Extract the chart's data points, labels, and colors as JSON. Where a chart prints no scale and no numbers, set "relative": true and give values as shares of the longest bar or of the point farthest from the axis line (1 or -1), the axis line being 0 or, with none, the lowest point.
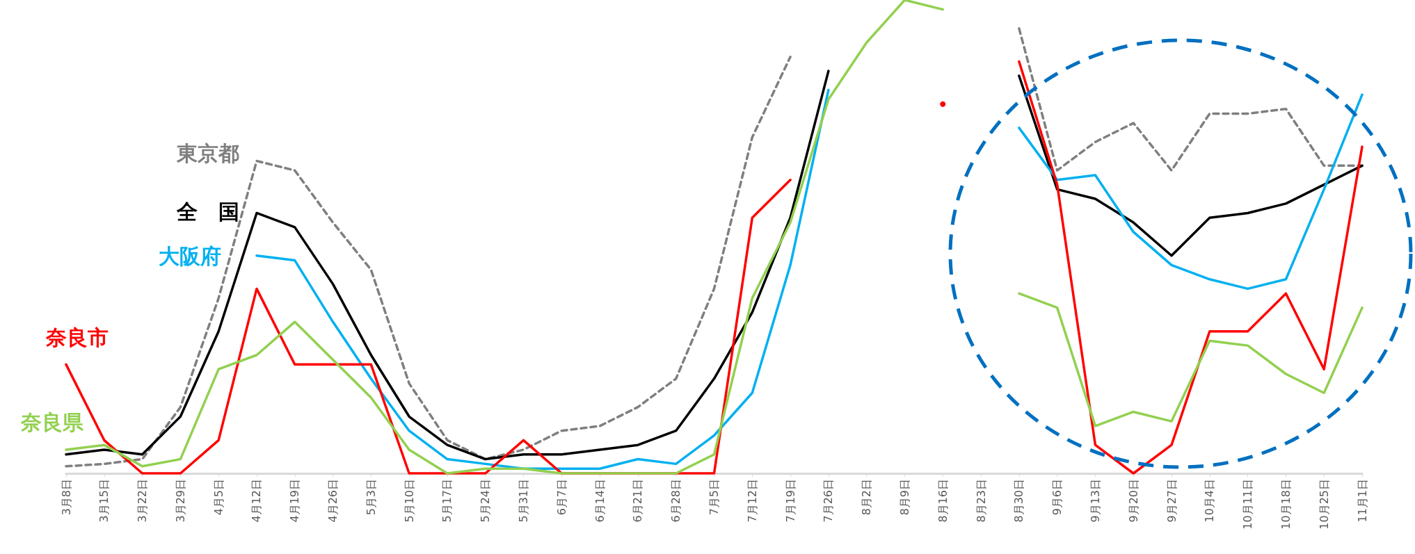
{
  "chart_data": {
    "type": "line",
    "relative": true,
    "legend": false,
    "grid": false,
    "marker": "none",
    "categories": [
      "3月8日",
      "3月15日",
      "3月22日",
      "3月29日",
      "4月5日",
      "4月12日",
      "4月19日",
      "4月26日",
      "5月3日",
      "5月10日",
      "5月17日",
      "5月24日",
      "5月31日",
      "6月7日",
      "6月14日",
      "6月21日",
      "6月28日",
      "7月5日",
      "7月12日",
      "7月19日",
      "7月26日",
      "8月2日",
      "8月9日",
      "8月16日",
      "8月23日",
      "8月30日",
      "9月6日",
      "9月13日",
      "9月20日",
      "9月27日",
      "10月4日",
      "10月11日",
      "10月18日",
      "10月25日",
      "11月1日"
    ],
    "series": [
      {
        "name": "東京都",
        "color": "#7f7f7f",
        "line_style": "dashed",
        "values": [
          0.015,
          0.02,
          0.03,
          0.14,
          0.37,
          0.66,
          0.64,
          0.53,
          0.43,
          0.19,
          0.07,
          0.03,
          0.05,
          0.09,
          0.1,
          0.14,
          0.2,
          0.39,
          0.71,
          0.88,
          null,
          null,
          null,
          null,
          null,
          0.94,
          0.64,
          0.7,
          0.74,
          0.64,
          0.76,
          0.76,
          0.77,
          0.65,
          0.65
        ]
      },
      {
        "name": "全　国",
        "color": "#000000",
        "line_style": "solid",
        "values": [
          0.04,
          0.05,
          0.04,
          0.12,
          0.3,
          0.55,
          0.52,
          0.4,
          0.25,
          0.12,
          0.06,
          0.03,
          0.04,
          0.04,
          0.05,
          0.06,
          0.09,
          0.2,
          0.34,
          0.54,
          0.85,
          null,
          null,
          null,
          null,
          0.84,
          0.6,
          0.58,
          0.53,
          0.46,
          0.54,
          0.55,
          0.57,
          0.61,
          0.65
        ]
      },
      {
        "name": "大阪府",
        "color": "#00b0f0",
        "line_style": "solid",
        "values": [
          null,
          null,
          null,
          null,
          null,
          0.46,
          0.45,
          0.32,
          0.2,
          0.09,
          0.03,
          0.02,
          0.01,
          0.01,
          0.01,
          0.03,
          0.02,
          0.08,
          0.17,
          0.44,
          0.81,
          null,
          null,
          null,
          null,
          0.73,
          0.62,
          0.63,
          0.51,
          0.44,
          0.41,
          0.39,
          0.41,
          0.6,
          0.8
        ]
      },
      {
        "name": "奈良市",
        "color": "#ff0000",
        "line_style": "solid",
        "values": [
          0.23,
          0.07,
          0,
          0,
          0.07,
          0.39,
          0.23,
          0.23,
          0.23,
          0,
          0,
          0,
          0.07,
          0,
          0,
          0,
          0,
          0,
          0.54,
          0.62,
          null,
          null,
          null,
          0.78,
          null,
          0.87,
          0.61,
          0.06,
          0,
          0.06,
          0.3,
          0.3,
          0.38,
          0.22,
          0.69
        ]
      },
      {
        "name": "奈良県",
        "color": "#92d050",
        "line_style": "solid",
        "values": [
          0.05,
          0.06,
          0.015,
          0.03,
          0.22,
          0.25,
          0.32,
          0.24,
          0.16,
          0.05,
          0,
          0.01,
          0.01,
          0,
          0,
          0,
          0,
          0.04,
          0.37,
          0.53,
          0.79,
          0.91,
          1,
          0.98,
          null,
          0.38,
          0.35,
          0.1,
          0.13,
          0.11,
          0.28,
          0.27,
          0.21,
          0.17,
          0.35
        ]
      }
    ]
  }
}
